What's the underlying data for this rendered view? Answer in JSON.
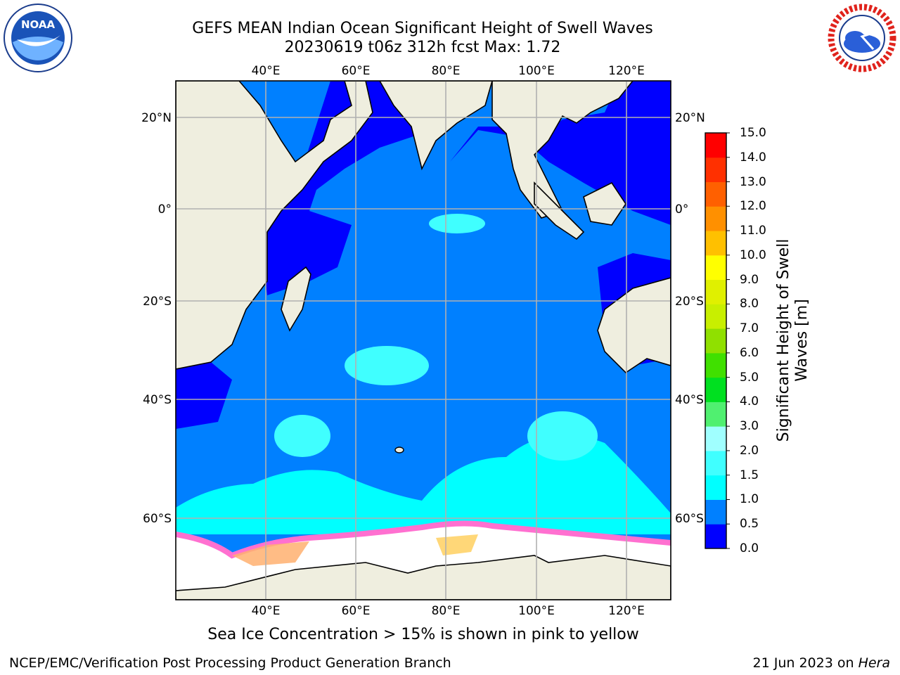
{
  "header": {
    "title_line1": "GEFS MEAN Indian Ocean Significant Height of Swell Waves",
    "title_line2": "20230619 t06z 312h fcst   Max: 1.72"
  },
  "logos": {
    "left": {
      "text": "NOAA",
      "ring_text": "NATIONAL OCEANIC AND ATMOSPHERIC ADMINISTRATION · U.S. DEPARTMENT OF COMMERCE"
    },
    "right": {
      "ring_text": "NATIONAL WEATHER SERVICE"
    }
  },
  "map": {
    "lon_labels": [
      "40°E",
      "60°E",
      "80°E",
      "100°E",
      "120°E"
    ],
    "lat_labels": [
      "20°N",
      "0°",
      "20°S",
      "40°S",
      "60°S"
    ],
    "colors": {
      "land": "#efeedf",
      "ice": "#ffffff",
      "grid": "#b0b0b0"
    }
  },
  "colorbar": {
    "label_line1": "Significant Height of Swell",
    "label_line2": "Waves [m]",
    "ticks": [
      "0.0",
      "0.5",
      "1.0",
      "1.5",
      "2.0",
      "3.0",
      "4.0",
      "5.0",
      "6.0",
      "7.0",
      "8.0",
      "9.0",
      "10.0",
      "11.0",
      "12.0",
      "13.0",
      "14.0",
      "15.0"
    ],
    "colors": [
      "#0000ff",
      "#0080ff",
      "#00ffff",
      "#40ffff",
      "#a0ffff",
      "#50f070",
      "#00e020",
      "#40e000",
      "#90e000",
      "#c8ef00",
      "#e0f000",
      "#ffff00",
      "#ffc000",
      "#ff9000",
      "#ff6000",
      "#ff3000",
      "#ff0000"
    ]
  },
  "notes": {
    "sea_ice": "Sea Ice Concentration > 15% is shown in pink to yellow"
  },
  "footer": {
    "left": "NCEP/EMC/Verification Post Processing Product Generation Branch",
    "right_prefix": "21 Jun 2023 on ",
    "right_machine": "Hera"
  }
}
